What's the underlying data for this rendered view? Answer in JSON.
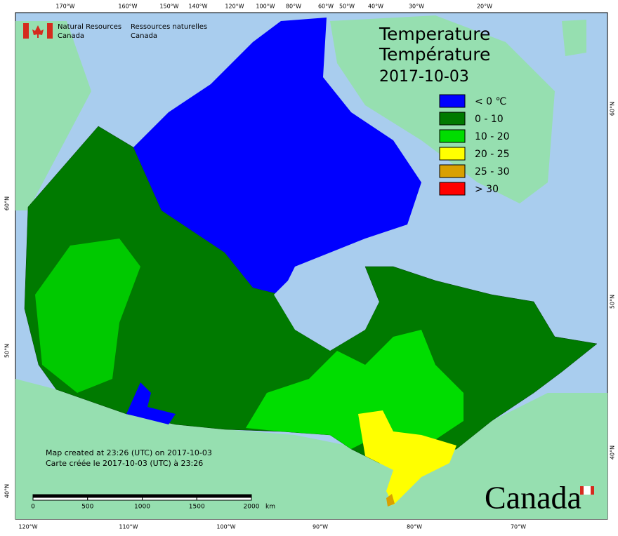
{
  "agency": {
    "en": [
      "Natural Resources",
      "Canada"
    ],
    "fr": [
      "Ressources naturelles",
      "Canada"
    ]
  },
  "title": {
    "en": "Temperature",
    "fr": "Température",
    "date": "2017-10-03"
  },
  "legend": [
    {
      "label": "< 0 ℃",
      "color": "#0000ff"
    },
    {
      "label": "0 - 10",
      "color": "#007a00"
    },
    {
      "label": "10 - 20",
      "color": "#00dd00"
    },
    {
      "label": "20 - 25",
      "color": "#ffff00"
    },
    {
      "label": "25 - 30",
      "color": "#d9a000"
    },
    {
      "label": "> 30",
      "color": "#ff0000"
    }
  ],
  "graticule": {
    "top": [
      "170°W",
      "160°W",
      "150°W",
      "140°W",
      "120°W",
      "100°W",
      "80°W",
      "60°W",
      "50°W",
      "40°W",
      "30°W",
      "20°W"
    ],
    "bottom": [
      "120°W",
      "110°W",
      "100°W",
      "90°W",
      "80°W",
      "70°W"
    ],
    "left": [
      "60°N",
      "50°N",
      "40°N"
    ],
    "right": [
      "60°N",
      "50°N",
      "40°N"
    ]
  },
  "notes": [
    "Map created at 23:26 (UTC) on 2017-10-03",
    "Carte créée le 2017-10-03 (UTC) à 23:26"
  ],
  "scale_bar": {
    "labels": [
      0,
      500,
      1000,
      1500,
      2000
    ],
    "unit": "km"
  },
  "wordmark": "Canada"
}
